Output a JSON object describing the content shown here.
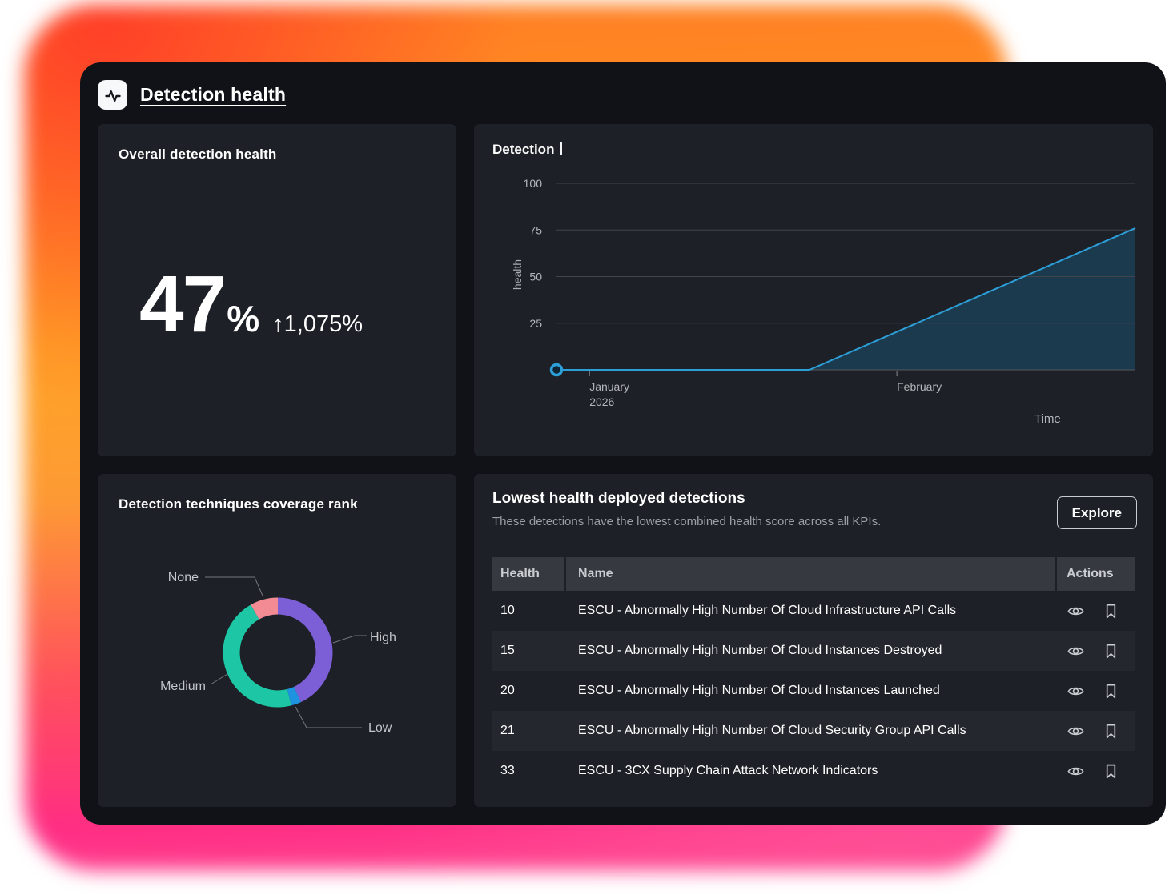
{
  "header": {
    "title": "Detection health",
    "icon": "pulse-icon"
  },
  "overall_panel": {
    "title": "Overall detection health",
    "value": "47",
    "percent_sign": "%",
    "delta": "↑1,075%"
  },
  "table_panel": {
    "title": "Lowest health deployed detections",
    "subtitle": "These detections have the lowest combined health score across all KPIs.",
    "explore_label": "Explore",
    "columns": {
      "health": "Health",
      "name": "Name",
      "actions": "Actions"
    },
    "rows": [
      {
        "health": "10",
        "name": "ESCU - Abnormally High Number Of Cloud Infrastructure API Calls"
      },
      {
        "health": "15",
        "name": "ESCU - Abnormally High Number Of Cloud Instances Destroyed"
      },
      {
        "health": "20",
        "name": "ESCU - Abnormally High Number Of Cloud Instances Launched"
      },
      {
        "health": "21",
        "name": "ESCU - Abnormally High Number Of Cloud Security Group API Calls"
      },
      {
        "health": "33",
        "name": "ESCU - 3CX Supply Chain Attack Network Indicators"
      }
    ],
    "row_action_icons": [
      "eye-icon",
      "bookmark-icon"
    ]
  },
  "chart_data": [
    {
      "type": "area",
      "title": "Detection",
      "title_truncated_caret": "|",
      "ylabel": "health",
      "xlabel": "Time",
      "ylim": [
        0,
        100
      ],
      "y_ticks": [
        100,
        75,
        50,
        25
      ],
      "x_ticks": [
        {
          "label": "January",
          "sublabel": "2026",
          "pos_pct": 5.7
        },
        {
          "label": "February",
          "sublabel": "",
          "pos_pct": 58.8
        }
      ],
      "series": [
        {
          "name": "health",
          "points": [
            {
              "x_pct": 0,
              "y": 0
            },
            {
              "x_pct": 43.7,
              "y": 0
            },
            {
              "x_pct": 100,
              "y": 76
            }
          ]
        }
      ],
      "start_marker": {
        "x_pct": 0,
        "y": 0
      },
      "line_color": "#2D9FD8",
      "fill_color": "#1C3A4E",
      "grid": true,
      "legend": false
    },
    {
      "type": "pie",
      "donut": true,
      "title": "Detection techniques coverage rank",
      "legend_position": "callout-labels",
      "segments": [
        {
          "label": "High",
          "pct": 43.0,
          "color": "#7C5FD6"
        },
        {
          "label": "Low",
          "pct": 3.0,
          "color": "#1E93E0"
        },
        {
          "label": "Medium",
          "pct": 45.7,
          "color": "#1DC7A5"
        },
        {
          "label": "None",
          "pct": 8.3,
          "color": "#F28B94"
        }
      ]
    }
  ],
  "colors": {
    "canvas_bg": "#101217",
    "panel_bg": "#1d2026",
    "table_header_bg": "#36393f",
    "zebra_row_bg": "#24272d",
    "axis_text": "#b4b7bb",
    "gradient_stops": [
      "#FF4229",
      "#FFA426",
      "#FF2D84"
    ]
  }
}
